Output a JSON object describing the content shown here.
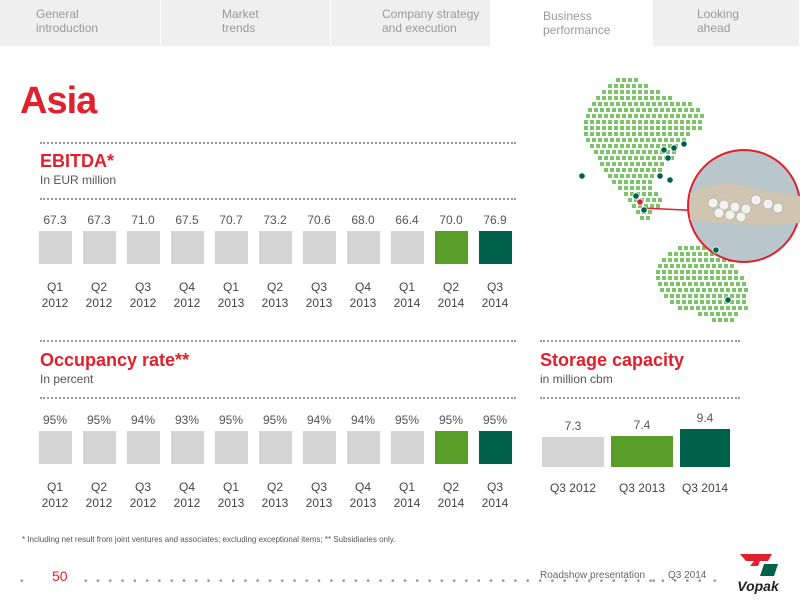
{
  "nav": {
    "tabs": [
      {
        "line1": "General",
        "line2": "introduction"
      },
      {
        "line1": "Market",
        "line2": "trends"
      },
      {
        "line1": "Company strategy",
        "line2": "and execution"
      },
      {
        "line1": "Business",
        "line2": "performance"
      },
      {
        "line1": "Looking",
        "line2": "ahead"
      }
    ],
    "active_index": 3
  },
  "page_title": "Asia",
  "ebitda": {
    "title": "EBITDA*",
    "subtitle": "In EUR million",
    "items": [
      {
        "q": "Q1",
        "year": "2012",
        "value": "67.3"
      },
      {
        "q": "Q2",
        "year": "2012",
        "value": "67.3"
      },
      {
        "q": "Q3",
        "year": "2012",
        "value": "71.0"
      },
      {
        "q": "Q4",
        "year": "2012",
        "value": "67.5"
      },
      {
        "q": "Q1",
        "year": "2013",
        "value": "70.7"
      },
      {
        "q": "Q2",
        "year": "2013",
        "value": "73.2"
      },
      {
        "q": "Q3",
        "year": "2013",
        "value": "70.6"
      },
      {
        "q": "Q4",
        "year": "2013",
        "value": "68.0"
      },
      {
        "q": "Q1",
        "year": "2014",
        "value": "66.4"
      },
      {
        "q": "Q2",
        "year": "2014",
        "value": "70.0"
      },
      {
        "q": "Q3",
        "year": "2014",
        "value": "76.9"
      }
    ]
  },
  "occupancy": {
    "title": "Occupancy rate**",
    "subtitle": "In percent",
    "items": [
      {
        "q": "Q1",
        "year": "2012",
        "value": "95%"
      },
      {
        "q": "Q2",
        "year": "2012",
        "value": "95%"
      },
      {
        "q": "Q3",
        "year": "2012",
        "value": "94%"
      },
      {
        "q": "Q4",
        "year": "2012",
        "value": "93%"
      },
      {
        "q": "Q1",
        "year": "2013",
        "value": "95%"
      },
      {
        "q": "Q2",
        "year": "2013",
        "value": "95%"
      },
      {
        "q": "Q3",
        "year": "2013",
        "value": "94%"
      },
      {
        "q": "Q4",
        "year": "2013",
        "value": "94%"
      },
      {
        "q": "Q1",
        "year": "2014",
        "value": "95%"
      },
      {
        "q": "Q2",
        "year": "2014",
        "value": "95%"
      },
      {
        "q": "Q3",
        "year": "2014",
        "value": "95%"
      }
    ]
  },
  "storage": {
    "title": "Storage capacity",
    "subtitle": "in million cbm",
    "items": [
      {
        "label": "Q3 2012",
        "value": "7.3"
      },
      {
        "label": "Q3 2013",
        "value": "7.4"
      },
      {
        "label": "Q3 2014",
        "value": "9.4"
      }
    ]
  },
  "colors": {
    "red": "#e0202c",
    "grey_bar": "#d4d4d4",
    "green_bar": "#5a9e2a",
    "teal_bar": "#00614a",
    "map_dot": "#7cc36a"
  },
  "footnote": "* Including net result from joint ventures and associates; excluding exceptional items; ** Subsidiaries only.",
  "footer": {
    "page_number": "50",
    "presentation": "Roadshow presentation",
    "period": "Q3 2014",
    "logo": "Vopak"
  }
}
